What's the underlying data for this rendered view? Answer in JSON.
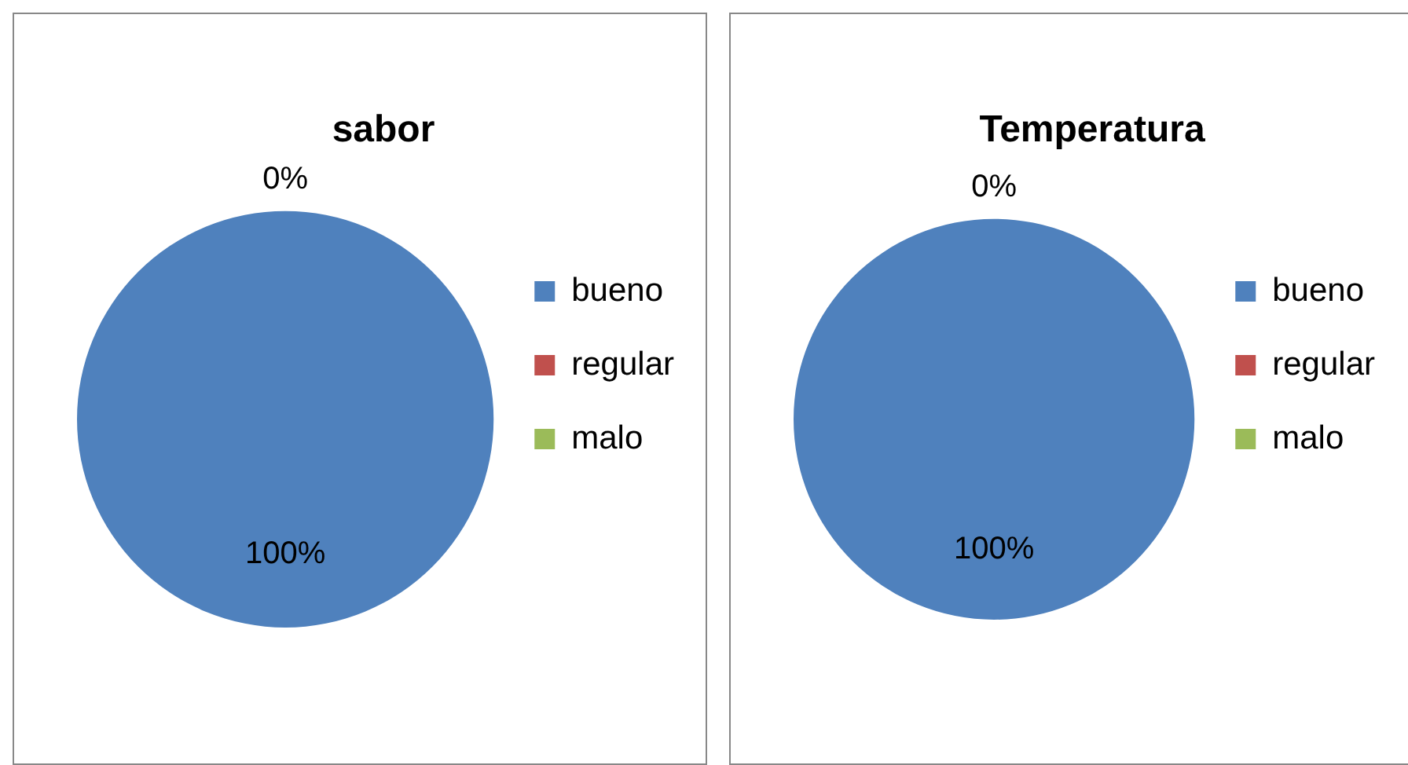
{
  "chart_data": [
    {
      "type": "pie",
      "title": "sabor",
      "categories": [
        "bueno",
        "regular",
        "malo"
      ],
      "values": [
        100,
        0,
        0
      ],
      "colors": [
        "#4f81bd",
        "#c0504d",
        "#9bbb59"
      ],
      "value_labels": [
        "100%",
        "0%",
        null
      ],
      "legend": "right"
    },
    {
      "type": "pie",
      "title": "Temperatura",
      "categories": [
        "bueno",
        "regular",
        "malo"
      ],
      "values": [
        100,
        0,
        0
      ],
      "colors": [
        "#4f81bd",
        "#c0504d",
        "#9bbb59"
      ],
      "value_labels": [
        "100%",
        "0%",
        null
      ],
      "legend": "right"
    }
  ]
}
